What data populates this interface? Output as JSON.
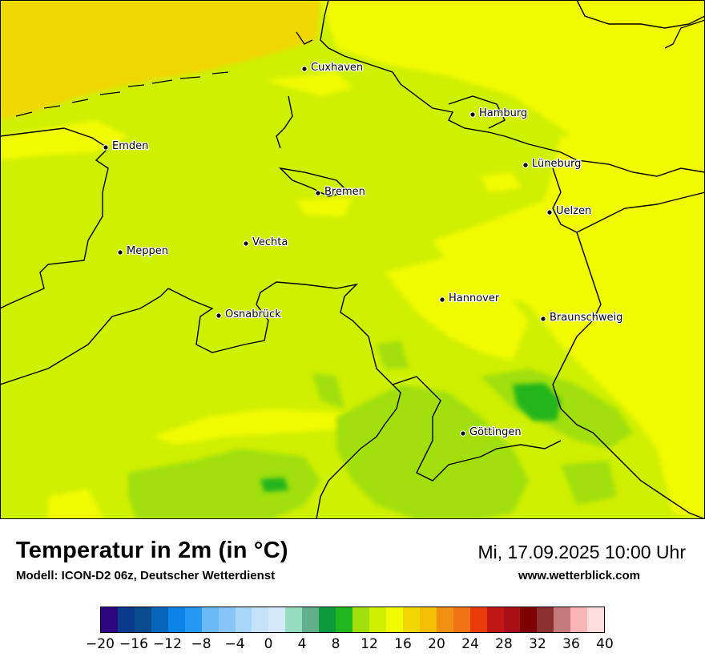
{
  "map": {
    "title": "Temperatur in 2m (in °C)",
    "model": "Modell: ICON-D2 06z, Deutscher Wetterdienst",
    "valid_time": "Mi, 17.09.2025 10:00 Uhr",
    "website": "www.wetterblick.com",
    "cities": [
      {
        "name": "Cuxhaven"
      },
      {
        "name": "Hamburg"
      },
      {
        "name": "Emden"
      },
      {
        "name": "Lüneburg"
      },
      {
        "name": "Bremen"
      },
      {
        "name": "Uelzen"
      },
      {
        "name": "Meppen"
      },
      {
        "name": "Vechta"
      },
      {
        "name": "Hannover"
      },
      {
        "name": "Osnabrück"
      },
      {
        "name": "Braunschweig"
      },
      {
        "name": "Göttingen"
      }
    ],
    "temperature_fields": {
      "north_sea_coast": "16-18",
      "main_land": "12-14",
      "central_east": "14-16",
      "southern_hills": "10-12",
      "harz": "8-10"
    }
  },
  "legend": {
    "unit": "°C",
    "min": -20,
    "max": 40,
    "tick_labels": [
      "−20",
      "−16",
      "−12",
      "−8",
      "−4",
      "0",
      "4",
      "8",
      "12",
      "16",
      "20",
      "24",
      "28",
      "32",
      "36",
      "40"
    ],
    "colors": [
      "#2e0680",
      "#0a3a8c",
      "#0a4a8e",
      "#0866b8",
      "#0c83e6",
      "#2598f3",
      "#6cb9f8",
      "#87c5f8",
      "#a8d6fa",
      "#c5e2fb",
      "#d5e9fb",
      "#96dcc0",
      "#62b08b",
      "#0c9a3a",
      "#20b61d",
      "#a1df0c",
      "#cff000",
      "#f1fb00",
      "#f1d700",
      "#f3bf00",
      "#f09114",
      "#f07414",
      "#e93a0b",
      "#bf1616",
      "#a80f16",
      "#7f0002",
      "#8a3030",
      "#c47a7a",
      "#f9b5b5",
      "#ffdcdc"
    ]
  }
}
